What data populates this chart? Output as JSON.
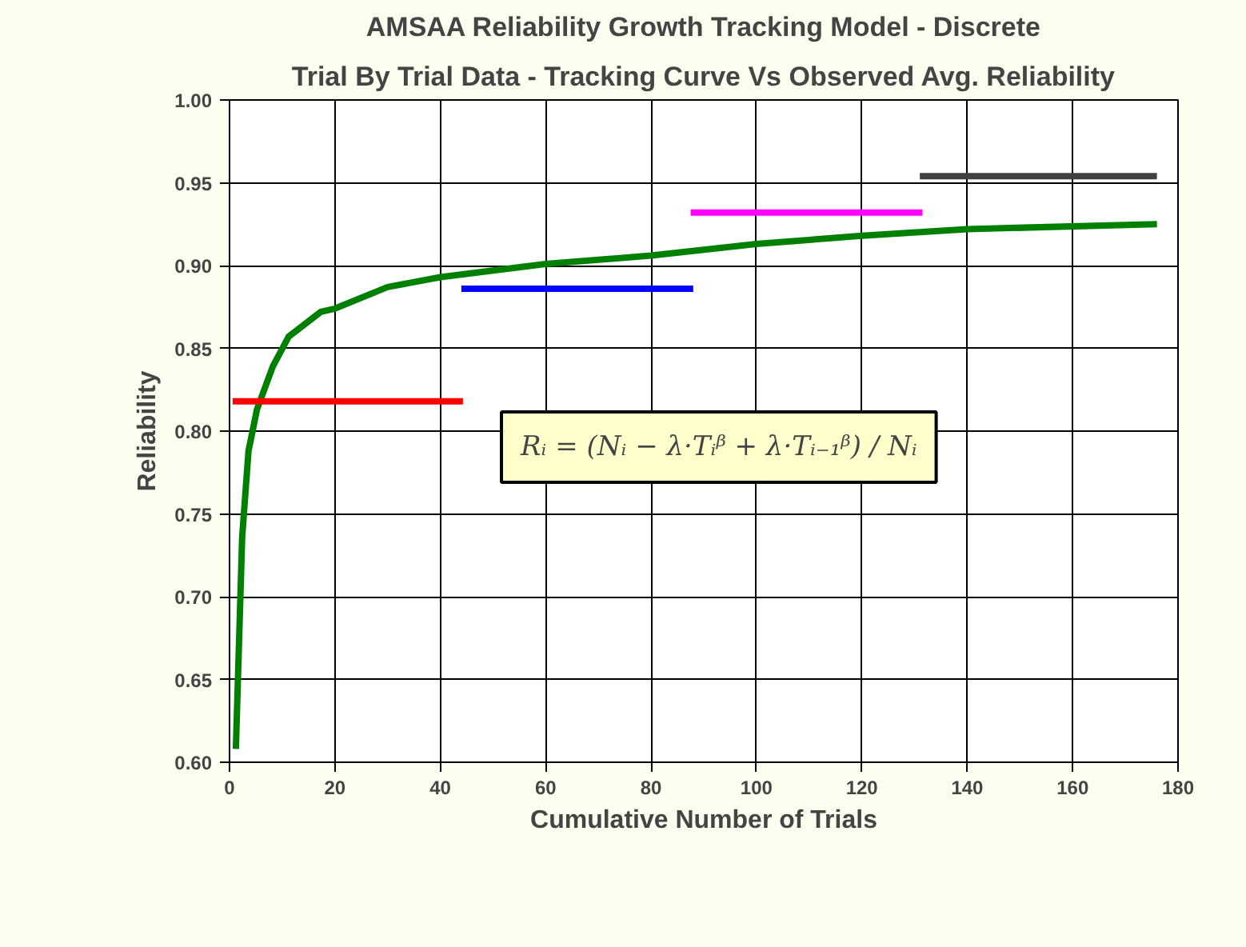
{
  "chart_data": {
    "type": "line",
    "title": "AMSAA Reliability Growth Tracking Model - Discrete",
    "subtitle": "Trial By Trial Data - Tracking Curve Vs Observed Avg. Reliability",
    "xlabel": "Cumulative Number of Trials",
    "ylabel": "Reliability",
    "xlim": [
      0,
      180
    ],
    "xticks": [
      0,
      20,
      40,
      60,
      80,
      100,
      120,
      140,
      160,
      180
    ],
    "ylim": [
      0.6,
      1.0
    ],
    "yticks": [
      {
        "value": 0.6,
        "label": "0.60"
      },
      {
        "value": 0.65,
        "label": "0.65"
      },
      {
        "value": 0.7,
        "label": "0.70"
      },
      {
        "value": 0.75,
        "label": "0.75"
      },
      {
        "value": 0.8,
        "label": "0.80"
      },
      {
        "value": 0.85,
        "label": "0.85"
      },
      {
        "value": 0.9,
        "label": "0.90"
      },
      {
        "value": 0.95,
        "label": "0.95"
      },
      {
        "value": 1.0,
        "label": "1.00"
      }
    ],
    "grid": true,
    "marker": "none",
    "line_style": "solid",
    "series": [
      {
        "color": "#008000",
        "x": [
          1.2,
          1.8,
          2.4,
          3.6,
          5.2,
          8.2,
          11.2,
          17.3,
          20,
          30,
          40,
          60,
          80,
          100,
          120,
          140,
          176
        ],
        "values": [
          0.608,
          0.672,
          0.736,
          0.788,
          0.813,
          0.839,
          0.857,
          0.872,
          0.874,
          0.887,
          0.893,
          0.901,
          0.906,
          0.913,
          0.918,
          0.922,
          0.925
        ]
      },
      {
        "color": "#ff0000",
        "x": [
          0.6,
          44.3
        ],
        "values": [
          0.818,
          0.818
        ]
      },
      {
        "color": "#0000ff",
        "x": [
          44,
          88
        ],
        "values": [
          0.886,
          0.886
        ]
      },
      {
        "color": "#ff00ff",
        "x": [
          87.5,
          131.5
        ],
        "values": [
          0.932,
          0.932
        ]
      },
      {
        "color": "#404040",
        "x": [
          131,
          176
        ],
        "values": [
          0.954,
          0.954
        ]
      }
    ],
    "annotations": [
      "Rᵢ = (Nᵢ − λ·Tᵢᵝ + λ·Tᵢ₋₁ᵝ) / Nᵢ"
    ]
  }
}
